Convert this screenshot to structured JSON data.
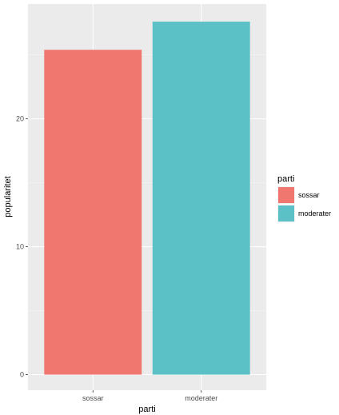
{
  "chart_data": {
    "type": "bar",
    "categories": [
      "sossar",
      "moderater"
    ],
    "values": [
      25.4,
      27.6
    ],
    "xlabel": "parti",
    "ylabel": "popularitet",
    "ylim": [
      0,
      28.98
    ],
    "yticks": [
      0,
      10,
      20
    ],
    "grid": true,
    "legend": {
      "title": "parti",
      "placement": "right",
      "entries": [
        "sossar",
        "moderater"
      ]
    },
    "colors": [
      "#F07670",
      "#5BC1C6"
    ]
  },
  "style": {
    "panel_bg": "#EBEBEB",
    "grid_major": "#FFFFFF",
    "grid_minor": "#F5F5F5",
    "tick_color": "#333333"
  }
}
